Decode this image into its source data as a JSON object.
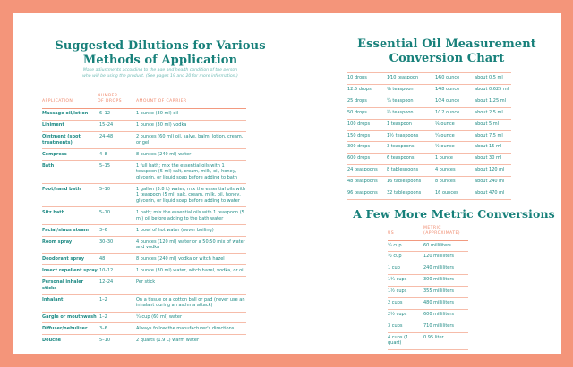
{
  "left": {
    "title_line1": "Suggested Dilutions for Various",
    "title_line2": "Methods of Application",
    "subtitle_line1": "Make adjustments according to the age and health condition of the person",
    "subtitle_line2": "who will be using the product. (See pages 19 and 20 for more information.)",
    "headers": {
      "application": "APPLICATION",
      "drops_line1": "NUMBER",
      "drops_line2": "OF DROPS",
      "carrier": "AMOUNT OF CARRIER"
    },
    "rows": [
      {
        "application": "Massage oil/lotion",
        "drops": "6–12",
        "carrier": "1 ounce (30 ml) oil"
      },
      {
        "application": "Liniment",
        "drops": "15–24",
        "carrier": "1 ounce (30 ml) vodka"
      },
      {
        "application": "Ointment (spot treatments)",
        "drops": "24–48",
        "carrier": "2 ounces (60 ml) oil, salve, balm, lotion, cream, or gel"
      },
      {
        "application": "Compress",
        "drops": "4–8",
        "carrier": "8 ounces (240 ml) water"
      },
      {
        "application": "Bath",
        "drops": "5–15",
        "carrier": "1 full bath; mix the essential oils with 1 teaspoon (5 ml) salt, cream, milk, oil, honey, glycerin, or liquid soap before adding to bath"
      },
      {
        "application": "Foot/hand bath",
        "drops": "5–10",
        "carrier": "1 gallon (3.8 L) water; mix the essential oils with 1 teaspoon (5 ml) salt, cream, milk, oil, honey, glycerin, or liquid soap before adding to water"
      },
      {
        "application": "Sitz bath",
        "drops": "5–10",
        "carrier": "1 bath; mix the essential oils with 1 teaspoon (5 ml) oil before adding to the bath water"
      },
      {
        "application": "Facial/sinus steam",
        "drops": "3–6",
        "carrier": "1 bowl of hot water (never boiling)"
      },
      {
        "application": "Room spray",
        "drops": "30–30",
        "carrier": "4 ounces (120 ml) water or a 50:50 mix of water and vodka"
      },
      {
        "application": "Deodorant spray",
        "drops": "48",
        "carrier": "8 ounces (240 ml) vodka or witch hazel"
      },
      {
        "application": "Insect repellent spray",
        "drops": "10–12",
        "carrier": "1 ounce (30 ml) water, witch hazel, vodka, or oil"
      },
      {
        "application": "Personal inhaler sticks",
        "drops": "12–24",
        "carrier": "Per stick"
      },
      {
        "application": "Inhalant",
        "drops": "1–2",
        "carrier": "On a tissue or a cotton ball or pad (never use an inhalant during an asthma attack)"
      },
      {
        "application": "Gargle or mouthwash",
        "drops": "1–2",
        "carrier": "¼ cup (60 ml) water"
      },
      {
        "application": "Diffuser/nebulizer",
        "drops": "3–6",
        "carrier": "Always follow the manufacturer's directions"
      },
      {
        "application": "Douche",
        "drops": "5–10",
        "carrier": "2 quarts (1.9 L) warm water"
      }
    ]
  },
  "right": {
    "title_line1": "Essential Oil Measurement",
    "title_line2": "Conversion Chart",
    "rows": [
      [
        "10 drops",
        "1⁄10 teaspoon",
        "1⁄60 ounce",
        "about 0.5 ml"
      ],
      [
        "12.5 drops",
        "⅛ teaspoon",
        "1⁄48 ounce",
        "about 0.625 ml"
      ],
      [
        "25 drops",
        "¼ teaspoon",
        "1⁄24 ounce",
        "about 1.25 ml"
      ],
      [
        "50 drops",
        "½ teaspoon",
        "1⁄12 ounce",
        "about 2.5 ml"
      ],
      [
        "100 drops",
        "1 teaspoon",
        "⅙ ounce",
        "about 5 ml"
      ],
      [
        "150 drops",
        "1½ teaspoons",
        "¼ ounce",
        "about 7.5 ml"
      ],
      [
        "300 drops",
        "3 teaspoons",
        "½ ounce",
        "about 15 ml"
      ],
      [
        "600 drops",
        "6 teaspoons",
        "1 ounce",
        "about 30 ml"
      ],
      [
        "24 teaspoons",
        "8 tablespoons",
        "4 ounces",
        "about 120 ml"
      ],
      [
        "48 teaspoons",
        "16 tablespoons",
        "8 ounces",
        "about 240 ml"
      ],
      [
        "96 teaspoons",
        "32 tablespoons",
        "16 ounces",
        "about 470 ml"
      ]
    ],
    "metric_title": "A Few More Metric Conversions",
    "metric_headers": {
      "us": "US",
      "metric_line1": "METRIC",
      "metric_line2": "(APPROXIMATE)"
    },
    "metric_rows": [
      [
        "¼ cup",
        "60 milliliters"
      ],
      [
        "½ cup",
        "120 milliliters"
      ],
      [
        "1 cup",
        "240 milliliters"
      ],
      [
        "1¼ cups",
        "300 milliliters"
      ],
      [
        "1½ cups",
        "355 milliliters"
      ],
      [
        "2 cups",
        "480 milliliters"
      ],
      [
        "2½ cups",
        "600 milliliters"
      ],
      [
        "3 cups",
        "710 milliliters"
      ],
      [
        "4 cups (1 quart)",
        "0.95 liter"
      ]
    ]
  },
  "colors": {
    "border": "#f4957a",
    "teal": "#17807a",
    "salmon": "#ef8a6e"
  }
}
